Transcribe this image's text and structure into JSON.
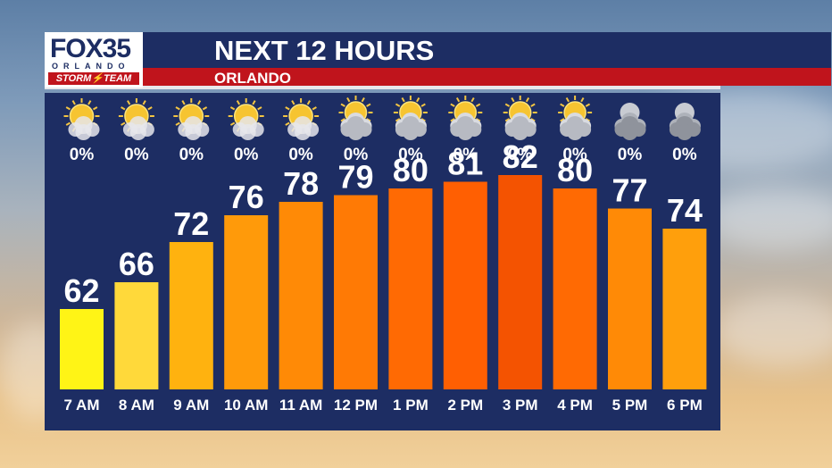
{
  "header": {
    "logo_brand": "FOX35",
    "logo_city": "ORLANDO",
    "logo_team": "STORM⚡TEAM",
    "title": "NEXT 12 HOURS",
    "subtitle": "ORLANDO"
  },
  "colors": {
    "panel": "#1d2d63",
    "header_red": "#c0141c",
    "text": "#ffffff"
  },
  "chart_data": {
    "type": "bar",
    "title": "NEXT 12 HOURS",
    "subtitle": "ORLANDO",
    "categories": [
      "7 AM",
      "8 AM",
      "9 AM",
      "10 AM",
      "11 AM",
      "12 PM",
      "1 PM",
      "2 PM",
      "3 PM",
      "4 PM",
      "5 PM",
      "6 PM"
    ],
    "values": [
      62,
      66,
      72,
      76,
      78,
      79,
      80,
      81,
      82,
      80,
      77,
      74
    ],
    "precip": [
      "0%",
      "0%",
      "0%",
      "0%",
      "0%",
      "0%",
      "0%",
      "0%",
      "0%",
      "0%",
      "0%",
      "0%"
    ],
    "icons": [
      "sunny-icon",
      "sunny-icon",
      "sunny-icon",
      "sunny-icon",
      "sunny-icon",
      "partly-cloudy-icon",
      "partly-cloudy-icon",
      "partly-cloudy-icon",
      "partly-cloudy-icon",
      "partly-cloudy-icon",
      "night-cloudy-icon",
      "night-cloudy-icon"
    ],
    "bar_colors": [
      "#fff416",
      "#ffd93a",
      "#ffb20f",
      "#ff9a0a",
      "#ff8a06",
      "#ff7a05",
      "#ff6a03",
      "#ff5f02",
      "#f45301",
      "#ff6a03",
      "#ff8a06",
      "#ff9f0c"
    ],
    "ylim": [
      50,
      86
    ],
    "xlabel": "",
    "ylabel": "",
    "grid": false,
    "legend": "none"
  }
}
